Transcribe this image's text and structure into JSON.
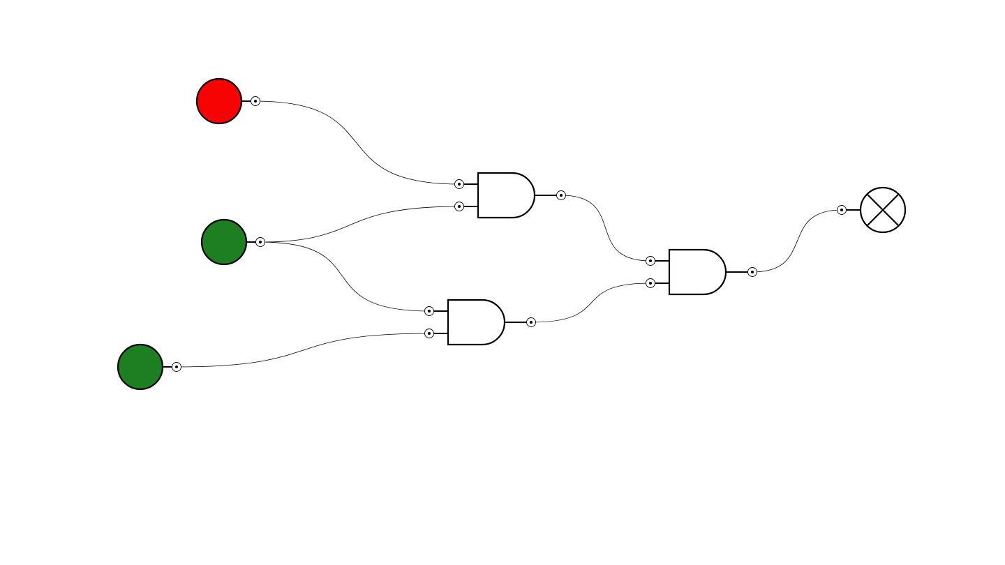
{
  "circuit": {
    "colors": {
      "on": "#1e7e22",
      "off": "#f70303",
      "stroke": "#000000",
      "background": "#ffffff"
    },
    "inputs": [
      {
        "id": "input-1",
        "state": "off"
      },
      {
        "id": "input-2",
        "state": "on"
      },
      {
        "id": "input-3",
        "state": "on"
      }
    ],
    "gates": [
      {
        "id": "and-gate-1",
        "type": "AND",
        "inputs": [
          "input-1",
          "input-2"
        ]
      },
      {
        "id": "and-gate-2",
        "type": "AND",
        "inputs": [
          "input-2",
          "input-3"
        ]
      },
      {
        "id": "and-gate-3",
        "type": "AND",
        "inputs": [
          "and-gate-1",
          "and-gate-2"
        ]
      }
    ],
    "outputs": [
      {
        "id": "output-lamp",
        "source": "and-gate-3",
        "icon": "lamp-cross-icon"
      }
    ]
  }
}
